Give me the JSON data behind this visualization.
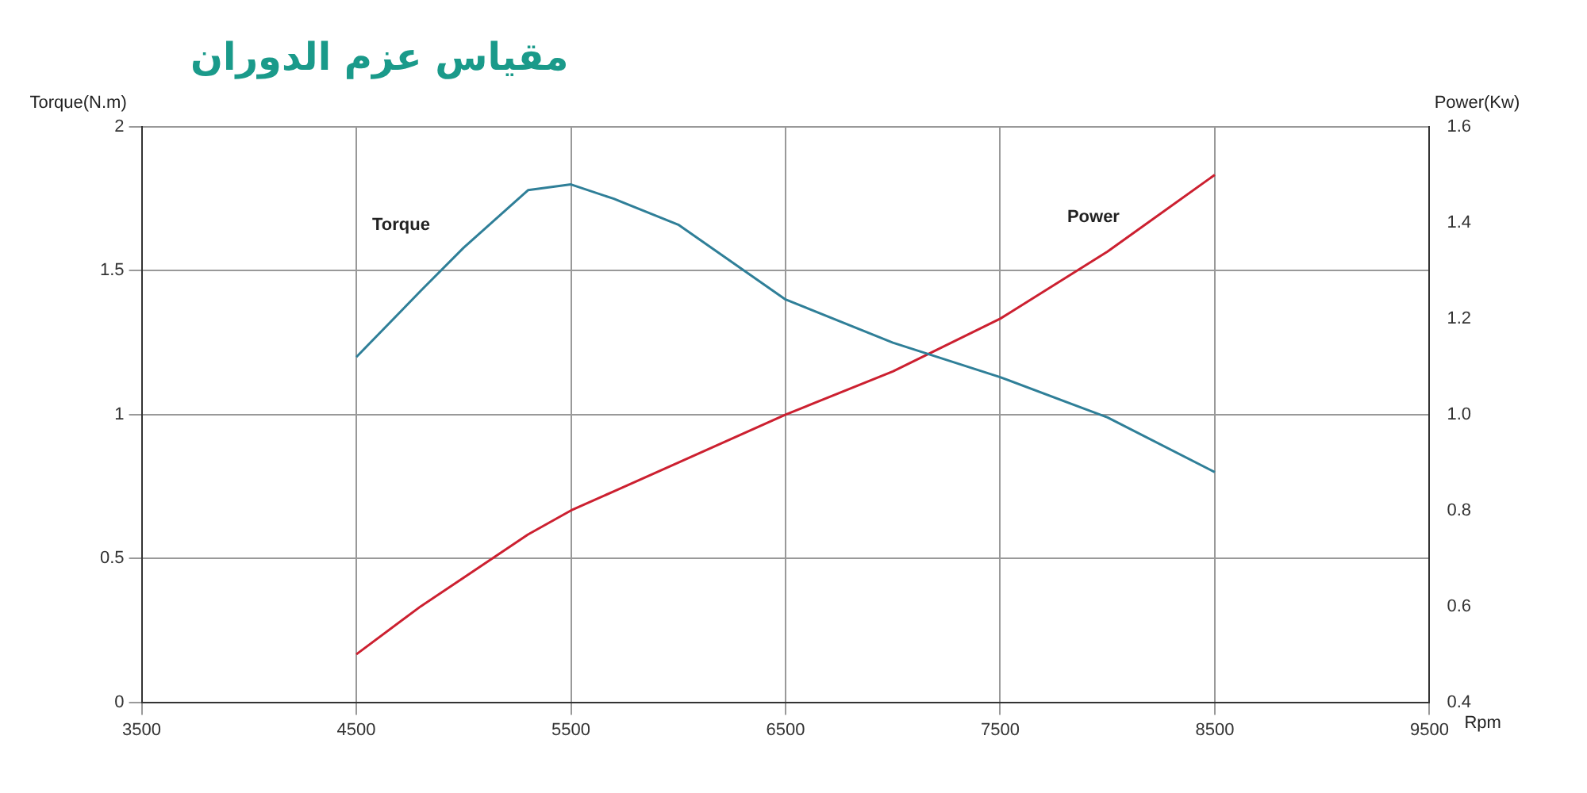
{
  "chart_data": {
    "type": "line",
    "title": "مقياس عزم الدوران",
    "xlabel": "Rpm",
    "ylabel": "Torque(N.m)",
    "y2label": "Power(Kw)",
    "x": [
      4500,
      4800,
      5000,
      5300,
      5500,
      5700,
      6000,
      6500,
      7000,
      7500,
      8000,
      8500
    ],
    "series": [
      {
        "name": "Torque",
        "color": "#2f7f98",
        "values": [
          1.2,
          1.43,
          1.58,
          1.78,
          1.8,
          1.75,
          1.66,
          1.4,
          1.25,
          1.13,
          0.99,
          0.8
        ]
      },
      {
        "name": "Power",
        "color": "#cc2030",
        "axis": "y2",
        "values": [
          0.5,
          0.6,
          0.66,
          0.75,
          0.8,
          0.84,
          0.9,
          1.0,
          1.09,
          1.2,
          1.34,
          1.5
        ]
      }
    ],
    "xlim": [
      3500,
      9500
    ],
    "xticks": [
      3500,
      4500,
      5500,
      6500,
      7500,
      8500,
      9500
    ],
    "ylim": [
      0,
      2
    ],
    "yticks": [
      0,
      0.5,
      1,
      1.5,
      2
    ],
    "y2lim": [
      0.4,
      1.6
    ],
    "y2ticks": [
      {
        "value": 0.4,
        "label": "0.4"
      },
      {
        "value": 0.6,
        "label": "0.6"
      },
      {
        "value": 0.8,
        "label": "0.8"
      },
      {
        "value": 1.0,
        "label": "1.0"
      },
      {
        "value": 1.2,
        "label": "1.2"
      },
      {
        "value": 1.4,
        "label": "1.4"
      },
      {
        "value": 1.6,
        "label": "1.6"
      }
    ],
    "grid": true,
    "legend": false,
    "marker": "none",
    "line_style": "solid"
  }
}
